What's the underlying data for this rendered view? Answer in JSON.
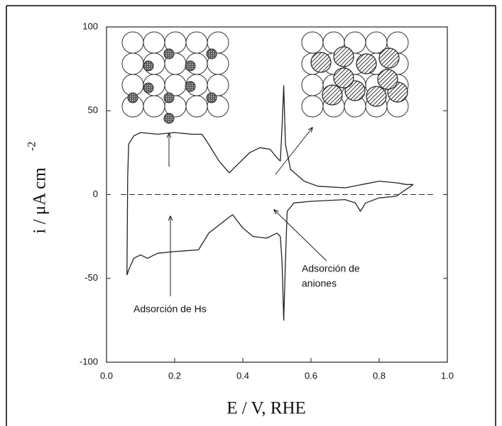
{
  "chart_data": {
    "type": "line",
    "x_label": "E  / V, RHE",
    "y_label": "i  /  μA cm",
    "y_label_sup": "-2",
    "annotations": [
      "Adsorción de Hs",
      "Adsorción de",
      "aniones"
    ],
    "xlim": [
      0.0,
      1.0
    ],
    "xticks": [
      {
        "value": 0.0,
        "label": "0.0"
      },
      0.2,
      0.4,
      0.6,
      0.8,
      {
        "value": 1.0,
        "label": "1.0"
      }
    ],
    "ylim": [
      -100,
      100
    ],
    "yticks": [
      100,
      50,
      0,
      -50,
      -100
    ],
    "series": [
      {
        "color": "#222",
        "x": [
          0.06,
          0.062,
          0.065,
          0.08,
          0.1,
          0.15,
          0.2,
          0.25,
          0.28,
          0.3,
          0.33,
          0.36,
          0.38,
          0.42,
          0.45,
          0.48,
          0.5,
          0.51,
          0.515,
          0.52,
          0.525,
          0.54,
          0.58,
          0.62,
          0.7,
          0.75,
          0.8,
          0.85,
          0.88,
          0.9
        ],
        "values": [
          -48,
          10,
          30,
          35,
          37,
          36,
          37,
          36,
          36,
          30,
          20,
          13,
          17,
          25,
          28,
          27,
          22,
          20,
          40,
          65,
          30,
          15,
          8,
          5,
          4,
          6,
          8,
          7,
          6,
          6
        ]
      },
      {
        "color": "#222",
        "x": [
          0.9,
          0.85,
          0.8,
          0.76,
          0.745,
          0.73,
          0.7,
          0.6,
          0.55,
          0.53,
          0.525,
          0.52,
          0.515,
          0.51,
          0.5,
          0.47,
          0.43,
          0.4,
          0.37,
          0.35,
          0.3,
          0.27,
          0.2,
          0.15,
          0.12,
          0.1,
          0.08,
          0.065,
          0.06
        ],
        "values": [
          6,
          -1,
          -2,
          -5,
          -10,
          -5,
          -3,
          -4,
          -5,
          -10,
          -40,
          -75,
          -40,
          -25,
          -23,
          -26,
          -25,
          -20,
          -12,
          -15,
          -23,
          -33,
          -34,
          -35,
          -38,
          -36,
          -38,
          -45,
          -48
        ]
      }
    ]
  }
}
